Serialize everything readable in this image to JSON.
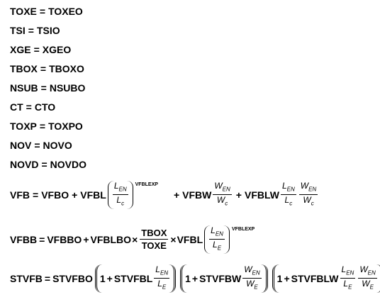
{
  "simple_equations": [
    {
      "lhs": "TOXE",
      "rhs": "TOXEO"
    },
    {
      "lhs": "TSI",
      "rhs": "TSIO"
    },
    {
      "lhs": "XGE",
      "rhs": "XGEO"
    },
    {
      "lhs": "TBOX",
      "rhs": "TBOXO"
    },
    {
      "lhs": "NSUB",
      "rhs": "NSUBO"
    },
    {
      "lhs": "CT",
      "rhs": "CTO"
    },
    {
      "lhs": "TOXP",
      "rhs": "TOXPO"
    },
    {
      "lhs": "NOV",
      "rhs": "NOVO"
    },
    {
      "lhs": "NOVD",
      "rhs": "NOVDO"
    }
  ],
  "symbols": {
    "eq": "=",
    "plus": "+",
    "times": "×",
    "one": "1"
  },
  "vfb": {
    "lhs": "VFB",
    "t1": "VFBO",
    "t2": "VFBL",
    "num1": "L",
    "num1_sub": "EN",
    "den1": "L",
    "den1_sub": "c",
    "exp": "VFBLEXP",
    "t3": "VFBW",
    "num2": "W",
    "num2_sub": "EN",
    "den2": "W",
    "den2_sub": "c",
    "t4": "VFBLW",
    "num3a": "L",
    "num3a_sub": "EN",
    "den3a": "L",
    "den3a_sub": "c",
    "num3b": "W",
    "num3b_sub": "EN",
    "den3b": "W",
    "den3b_sub": "c"
  },
  "vfbb": {
    "lhs": "VFBB",
    "t1": "VFBBO",
    "t2": "VFBLBO",
    "num1": "TBOX",
    "den1": "TOXE",
    "t3": "VFBL",
    "num2": "L",
    "num2_sub": "EN",
    "den2": "L",
    "den2_sub": "E",
    "exp": "VFBLEXP"
  },
  "stvfb": {
    "lhs": "STVFB",
    "t1": "STVFBO",
    "t2": "STVFBL",
    "num1": "L",
    "num1_sub": "EN",
    "den1": "L",
    "den1_sub": "E",
    "t3": "STVFBW",
    "num2": "W",
    "num2_sub": "EN",
    "den2": "W",
    "den2_sub": "E",
    "t4": "STVFBLW",
    "num3a": "L",
    "num3a_sub": "EN",
    "den3a": "L",
    "den3a_sub": "E",
    "num3b": "W",
    "num3b_sub": "EN",
    "den3b": "W",
    "den3b_sub": "E"
  }
}
